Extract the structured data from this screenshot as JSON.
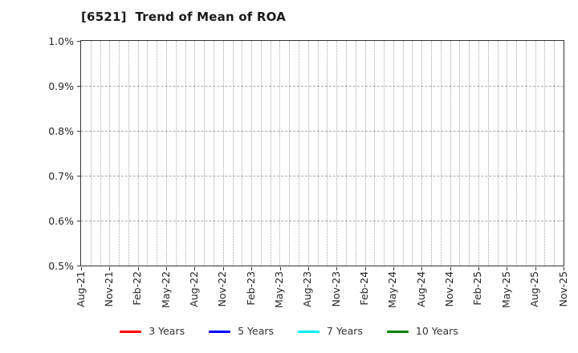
{
  "title": "[6521]  Trend of Mean of ROA",
  "chart_data": {
    "type": "line",
    "title": "[6521]  Trend of Mean of ROA",
    "x_tick_labels": [
      "Aug-21",
      "Nov-21",
      "Feb-22",
      "May-22",
      "Aug-22",
      "Nov-22",
      "Feb-23",
      "May-23",
      "Aug-23",
      "Nov-23",
      "Feb-24",
      "May-24",
      "Aug-24",
      "Nov-24",
      "Feb-25",
      "May-25",
      "Aug-25",
      "Nov-25"
    ],
    "x_months_total": 52,
    "x_tick_every_months": 3,
    "y_tick_labels": [
      "1.0%",
      "0.9%",
      "0.8%",
      "0.7%",
      "0.6%",
      "0.5%"
    ],
    "ylim": [
      0.5,
      1.0
    ],
    "y_unit": "%",
    "grid": "on",
    "legend_position": "bottom",
    "series": [
      {
        "name": "3 Years",
        "color": "#ff0000",
        "values": []
      },
      {
        "name": "5 Years",
        "color": "#0000ff",
        "values": []
      },
      {
        "name": "7 Years",
        "color": "#00eeee",
        "values": []
      },
      {
        "name": "10 Years",
        "color": "#008000",
        "values": []
      }
    ]
  },
  "colors": {
    "grid": "#a8a8a8",
    "axis_border": "#333333",
    "text": "#262626",
    "background": "#ffffff"
  }
}
